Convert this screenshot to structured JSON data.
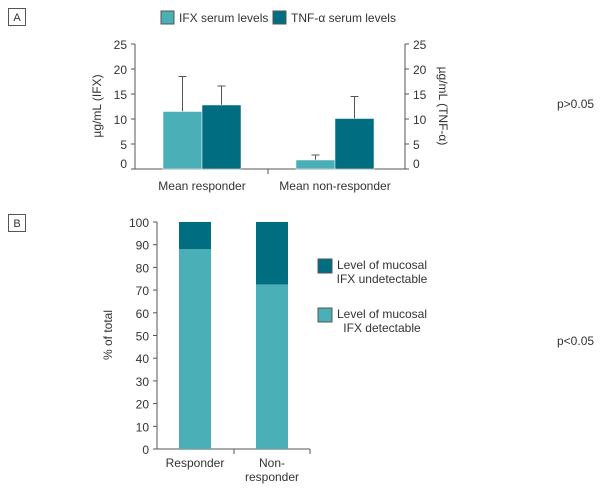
{
  "colors": {
    "light": "#4aafb6",
    "dark": "#006e80",
    "axis": "#555555"
  },
  "chart_data": [
    {
      "panel": "A",
      "type": "bar",
      "categories": [
        "Mean responder",
        "Mean non-responder"
      ],
      "series": [
        {
          "name": "IFX serum levels",
          "values": [
            11.5,
            1.8
          ],
          "error_upper": [
            18.5,
            2.8
          ]
        },
        {
          "name": "TNF-α serum levels",
          "values": [
            12.8,
            10.1
          ],
          "error_upper": [
            16.6,
            14.5
          ]
        }
      ],
      "ylabel": "µg/mL (IFX)",
      "ylabel_right": "µg/mL (TNF-α)",
      "ylim": [
        0,
        25
      ],
      "yticks": [
        "0",
        "5",
        "10",
        "15",
        "20",
        "25"
      ],
      "legend": "top",
      "annotation": "p>0.05"
    },
    {
      "panel": "B",
      "type": "bar",
      "stacked": true,
      "categories": [
        "Responder",
        "Non-responder"
      ],
      "category_lines": [
        [
          "Responder"
        ],
        [
          "Non-",
          "responder"
        ]
      ],
      "series": [
        {
          "name": "Level of mucosal IFX detectable",
          "legend_lines": [
            "Level of mucosal",
            "IFX detectable"
          ],
          "values": [
            88,
            72.5
          ]
        },
        {
          "name": "Level of mucosal IFX undetectable",
          "legend_lines": [
            "Level of mucosal",
            "IFX undetectable"
          ],
          "values": [
            12,
            27.5
          ]
        }
      ],
      "ylabel": "% of total",
      "ylim": [
        0,
        100
      ],
      "yticks": [
        "0",
        "10",
        "20",
        "30",
        "40",
        "50",
        "60",
        "70",
        "80",
        "90",
        "100"
      ],
      "legend": "right",
      "annotation": "p<0.05"
    }
  ]
}
